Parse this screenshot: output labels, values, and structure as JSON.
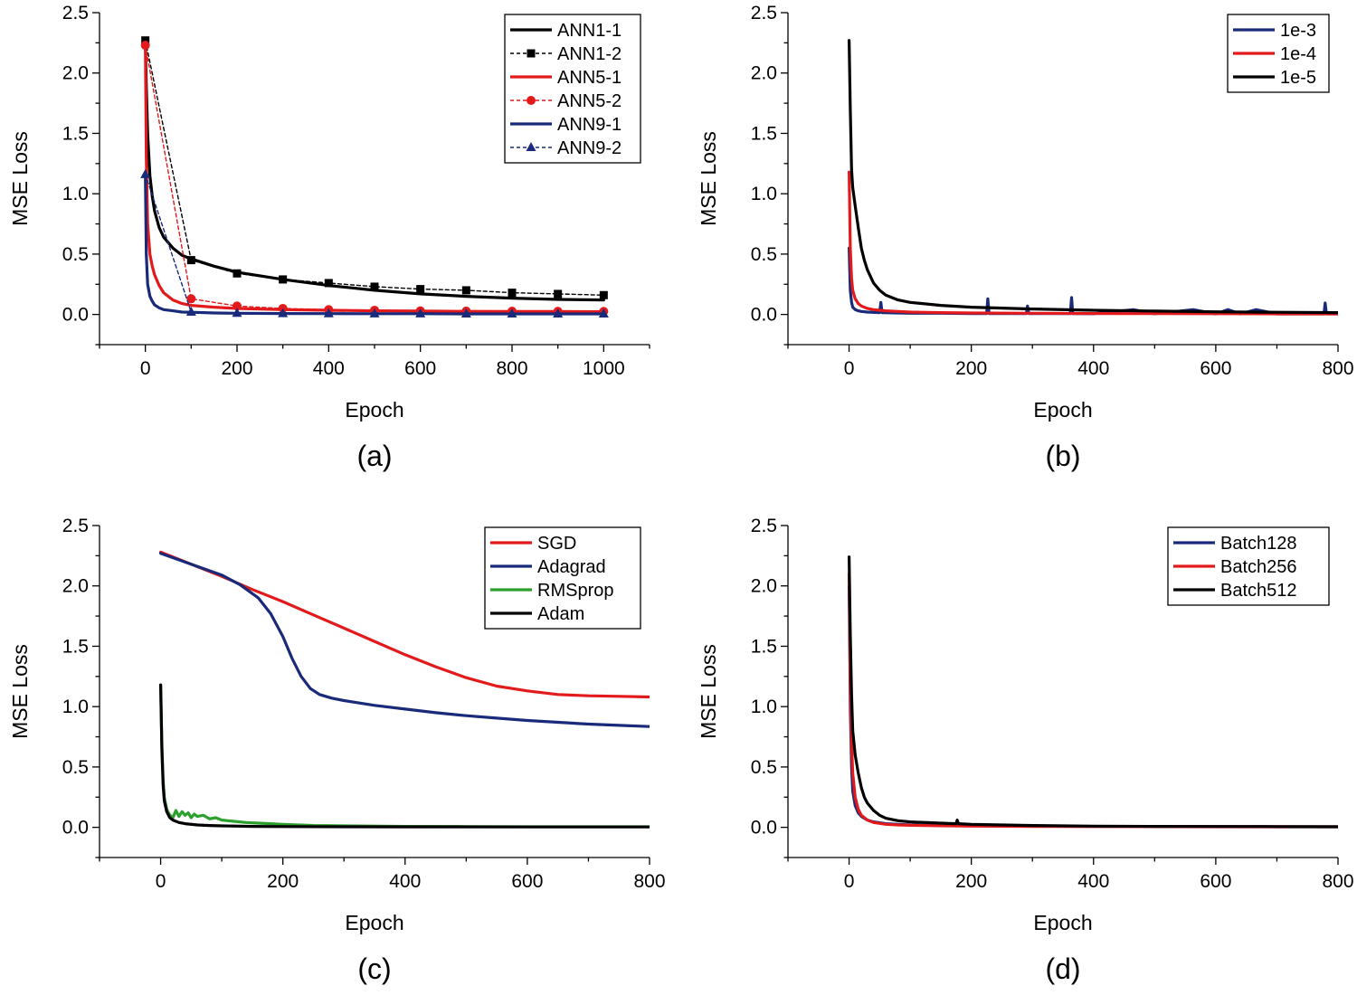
{
  "chart_data": [
    {
      "type": "line",
      "panel_label": "(a)",
      "xlabel": "Epoch",
      "ylabel": "MSE Loss",
      "xlim": [
        -100,
        1100
      ],
      "ylim": [
        -0.25,
        2.5
      ],
      "xticks": [
        0,
        200,
        400,
        600,
        800,
        1000
      ],
      "xtick_labels": [
        "0",
        "200",
        "400",
        "600",
        "800",
        "1000"
      ],
      "yticks": [
        0.0,
        0.5,
        1.0,
        1.5,
        2.0,
        2.5
      ],
      "ytick_labels": [
        "0.0",
        "0.5",
        "1.0",
        "1.5",
        "2.0",
        "2.5"
      ],
      "legend_position": "top-right",
      "series": [
        {
          "name": "ANN1-1",
          "color": "#000000",
          "style": "solid",
          "marker": "none",
          "x": [
            0,
            2,
            5,
            10,
            15,
            20,
            30,
            40,
            60,
            80,
            100,
            150,
            200,
            300,
            400,
            500,
            600,
            700,
            800,
            900,
            1000
          ],
          "y": [
            2.28,
            1.9,
            1.5,
            1.15,
            0.98,
            0.86,
            0.72,
            0.64,
            0.55,
            0.49,
            0.46,
            0.4,
            0.35,
            0.29,
            0.24,
            0.2,
            0.17,
            0.15,
            0.135,
            0.125,
            0.12
          ]
        },
        {
          "name": "ANN1-2",
          "color": "#000000",
          "style": "dotted",
          "marker": "square",
          "x": [
            0,
            100,
            200,
            300,
            400,
            500,
            600,
            700,
            800,
            900,
            1000
          ],
          "y": [
            2.27,
            0.45,
            0.34,
            0.29,
            0.26,
            0.23,
            0.21,
            0.2,
            0.18,
            0.17,
            0.16
          ]
        },
        {
          "name": "ANN5-1",
          "color": "#e31a1c",
          "style": "solid",
          "marker": "none",
          "x": [
            0,
            2,
            5,
            10,
            15,
            20,
            30,
            40,
            60,
            80,
            100,
            150,
            200,
            300,
            400,
            500,
            600,
            700,
            800,
            900,
            1000
          ],
          "y": [
            2.25,
            1.3,
            0.75,
            0.5,
            0.4,
            0.33,
            0.24,
            0.18,
            0.12,
            0.09,
            0.075,
            0.06,
            0.05,
            0.04,
            0.035,
            0.03,
            0.028,
            0.026,
            0.025,
            0.024,
            0.023
          ]
        },
        {
          "name": "ANN5-2",
          "color": "#e31a1c",
          "style": "dotted",
          "marker": "circle",
          "x": [
            0,
            100,
            200,
            300,
            400,
            500,
            600,
            700,
            800,
            900,
            1000
          ],
          "y": [
            2.23,
            0.13,
            0.07,
            0.05,
            0.04,
            0.035,
            0.03,
            0.028,
            0.027,
            0.026,
            0.025
          ]
        },
        {
          "name": "ANN9-1",
          "color": "#1a2a7a",
          "style": "solid",
          "marker": "none",
          "x": [
            0,
            2,
            5,
            10,
            15,
            20,
            30,
            40,
            60,
            80,
            100,
            150,
            200,
            300,
            400,
            500,
            600,
            700,
            800,
            900,
            1000
          ],
          "y": [
            1.15,
            0.5,
            0.25,
            0.15,
            0.11,
            0.08,
            0.055,
            0.04,
            0.03,
            0.02,
            0.018,
            0.012,
            0.01,
            0.008,
            0.007,
            0.006,
            0.006,
            0.005,
            0.005,
            0.005,
            0.005
          ]
        },
        {
          "name": "ANN9-2",
          "color": "#1a2a7a",
          "style": "dotted",
          "marker": "triangle",
          "x": [
            0,
            100,
            200,
            300,
            400,
            500,
            600,
            700,
            800,
            900,
            1000
          ],
          "y": [
            1.16,
            0.02,
            0.01,
            0.008,
            0.007,
            0.006,
            0.006,
            0.005,
            0.005,
            0.005,
            0.005
          ]
        }
      ]
    },
    {
      "type": "line",
      "panel_label": "(b)",
      "xlabel": "Epoch",
      "ylabel": "MSE Loss",
      "xlim": [
        -100,
        800
      ],
      "ylim": [
        -0.25,
        2.5
      ],
      "xticks": [
        0,
        200,
        400,
        600,
        800
      ],
      "xtick_labels": [
        "0",
        "200",
        "400",
        "600",
        "800"
      ],
      "yticks": [
        0.0,
        0.5,
        1.0,
        1.5,
        2.0,
        2.5
      ],
      "ytick_labels": [
        "0.0",
        "0.5",
        "1.0",
        "1.5",
        "2.0",
        "2.5"
      ],
      "legend_position": "top-right",
      "series": [
        {
          "name": "1e-3",
          "color": "#1a2a7a",
          "style": "solid",
          "x": [
            0,
            2,
            4,
            6,
            10,
            15,
            20,
            30,
            50,
            52,
            54,
            80,
            100,
            150,
            200,
            225,
            227,
            229,
            260,
            290,
            292,
            294,
            330,
            362,
            364,
            366,
            400,
            465,
            500,
            563,
            600,
            620,
            640,
            666,
            700,
            777,
            779,
            781,
            800
          ],
          "y": [
            0.55,
            0.2,
            0.1,
            0.06,
            0.04,
            0.03,
            0.025,
            0.02,
            0.015,
            0.1,
            0.015,
            0.012,
            0.01,
            0.01,
            0.008,
            0.008,
            0.13,
            0.008,
            0.008,
            0.008,
            0.07,
            0.008,
            0.007,
            0.007,
            0.14,
            0.007,
            0.006,
            0.04,
            0.006,
            0.04,
            0.005,
            0.04,
            0.005,
            0.04,
            0.005,
            0.005,
            0.095,
            0.005,
            0.005
          ]
        },
        {
          "name": "1e-4",
          "color": "#e31a1c",
          "style": "solid",
          "x": [
            0,
            2,
            4,
            6,
            10,
            15,
            20,
            30,
            40,
            60,
            80,
            100,
            150,
            200,
            300,
            400,
            500,
            600,
            700,
            800
          ],
          "y": [
            1.18,
            0.55,
            0.3,
            0.2,
            0.13,
            0.09,
            0.07,
            0.05,
            0.04,
            0.03,
            0.025,
            0.02,
            0.015,
            0.012,
            0.01,
            0.008,
            0.007,
            0.006,
            0.005,
            0.005
          ]
        },
        {
          "name": "1e-5",
          "color": "#000000",
          "style": "solid",
          "x": [
            0,
            2,
            4,
            6,
            10,
            15,
            20,
            25,
            30,
            40,
            50,
            60,
            80,
            100,
            150,
            200,
            300,
            400,
            500,
            600,
            700,
            800
          ],
          "y": [
            2.27,
            1.7,
            1.2,
            1.05,
            0.9,
            0.72,
            0.55,
            0.45,
            0.37,
            0.26,
            0.2,
            0.16,
            0.12,
            0.1,
            0.075,
            0.06,
            0.045,
            0.035,
            0.028,
            0.022,
            0.018,
            0.015
          ]
        }
      ]
    },
    {
      "type": "line",
      "panel_label": "(c)",
      "xlabel": "Epoch",
      "ylabel": "MSE Loss",
      "xlim": [
        -100,
        800
      ],
      "ylim": [
        -0.25,
        2.5
      ],
      "xticks": [
        0,
        200,
        400,
        600,
        800
      ],
      "xtick_labels": [
        "0",
        "200",
        "400",
        "600",
        "800"
      ],
      "yticks": [
        0.0,
        0.5,
        1.0,
        1.5,
        2.0,
        2.5
      ],
      "ytick_labels": [
        "0.0",
        "0.5",
        "1.0",
        "1.5",
        "2.0",
        "2.5"
      ],
      "legend_position": "top-right",
      "series": [
        {
          "name": "SGD",
          "color": "#e31a1c",
          "style": "solid",
          "x": [
            0,
            50,
            100,
            150,
            200,
            250,
            300,
            350,
            400,
            450,
            500,
            550,
            600,
            650,
            700,
            750,
            800
          ],
          "y": [
            2.28,
            2.18,
            2.08,
            1.97,
            1.87,
            1.76,
            1.65,
            1.54,
            1.43,
            1.33,
            1.24,
            1.17,
            1.13,
            1.1,
            1.09,
            1.085,
            1.08
          ]
        },
        {
          "name": "Adagrad",
          "color": "#1a2a7a",
          "style": "solid",
          "x": [
            0,
            50,
            100,
            130,
            160,
            180,
            200,
            215,
            230,
            245,
            260,
            280,
            300,
            350,
            400,
            450,
            500,
            550,
            600,
            650,
            700,
            750,
            800
          ],
          "y": [
            2.27,
            2.18,
            2.09,
            2.01,
            1.9,
            1.77,
            1.58,
            1.4,
            1.25,
            1.15,
            1.1,
            1.07,
            1.05,
            1.01,
            0.98,
            0.95,
            0.925,
            0.905,
            0.885,
            0.87,
            0.855,
            0.845,
            0.835
          ]
        },
        {
          "name": "RMSprop",
          "color": "#2ca02c",
          "style": "solid",
          "x": [
            0,
            2,
            4,
            6,
            10,
            15,
            20,
            25,
            30,
            35,
            40,
            45,
            50,
            55,
            60,
            70,
            80,
            90,
            100,
            120,
            140,
            160,
            180,
            200,
            250,
            300,
            400,
            500,
            600,
            700,
            800
          ],
          "y": [
            1.18,
            0.7,
            0.4,
            0.25,
            0.15,
            0.1,
            0.08,
            0.14,
            0.09,
            0.13,
            0.1,
            0.12,
            0.08,
            0.11,
            0.09,
            0.1,
            0.07,
            0.08,
            0.06,
            0.05,
            0.04,
            0.035,
            0.03,
            0.025,
            0.015,
            0.012,
            0.008,
            0.006,
            0.005,
            0.005,
            0.005
          ]
        },
        {
          "name": "Adam",
          "color": "#000000",
          "style": "solid",
          "x": [
            0,
            2,
            4,
            6,
            10,
            15,
            20,
            30,
            40,
            60,
            80,
            100,
            150,
            200,
            300,
            400,
            500,
            600,
            700,
            800
          ],
          "y": [
            1.18,
            0.65,
            0.35,
            0.22,
            0.13,
            0.08,
            0.06,
            0.04,
            0.03,
            0.02,
            0.015,
            0.012,
            0.008,
            0.006,
            0.005,
            0.004,
            0.004,
            0.003,
            0.003,
            0.003
          ]
        }
      ]
    },
    {
      "type": "line",
      "panel_label": "(d)",
      "xlabel": "Epoch",
      "ylabel": "MSE Loss",
      "xlim": [
        -100,
        800
      ],
      "ylim": [
        -0.25,
        2.5
      ],
      "xticks": [
        0,
        200,
        400,
        600,
        800
      ],
      "xtick_labels": [
        "0",
        "200",
        "400",
        "600",
        "800"
      ],
      "yticks": [
        0.0,
        0.5,
        1.0,
        1.5,
        2.0,
        2.5
      ],
      "ytick_labels": [
        "0.0",
        "0.5",
        "1.0",
        "1.5",
        "2.0",
        "2.5"
      ],
      "legend_position": "top-right",
      "series": [
        {
          "name": "Batch128",
          "color": "#1a2a7a",
          "style": "solid",
          "x": [
            0,
            2,
            4,
            6,
            10,
            15,
            20,
            30,
            40,
            60,
            80,
            100,
            150,
            200,
            300,
            400,
            500,
            600,
            700,
            800
          ],
          "y": [
            2.0,
            1.0,
            0.5,
            0.3,
            0.18,
            0.12,
            0.09,
            0.06,
            0.045,
            0.03,
            0.025,
            0.02,
            0.015,
            0.012,
            0.01,
            0.008,
            0.007,
            0.006,
            0.005,
            0.005
          ]
        },
        {
          "name": "Batch256",
          "color": "#e31a1c",
          "style": "solid",
          "x": [
            0,
            2,
            4,
            6,
            10,
            15,
            20,
            30,
            40,
            60,
            80,
            100,
            150,
            200,
            300,
            400,
            500,
            600,
            700,
            800
          ],
          "y": [
            2.1,
            1.2,
            0.7,
            0.45,
            0.25,
            0.15,
            0.1,
            0.06,
            0.04,
            0.025,
            0.02,
            0.017,
            0.013,
            0.01,
            0.008,
            0.007,
            0.006,
            0.005,
            0.005,
            0.005
          ]
        },
        {
          "name": "Batch512",
          "color": "#000000",
          "style": "solid",
          "x": [
            0,
            2,
            4,
            6,
            10,
            15,
            20,
            25,
            30,
            40,
            50,
            60,
            80,
            100,
            150,
            175,
            177,
            179,
            200,
            300,
            400,
            500,
            600,
            700,
            800
          ],
          "y": [
            2.24,
            1.6,
            1.1,
            0.8,
            0.6,
            0.45,
            0.33,
            0.25,
            0.2,
            0.14,
            0.1,
            0.075,
            0.055,
            0.045,
            0.035,
            0.03,
            0.06,
            0.03,
            0.025,
            0.015,
            0.01,
            0.008,
            0.007,
            0.006,
            0.005
          ]
        }
      ]
    }
  ]
}
